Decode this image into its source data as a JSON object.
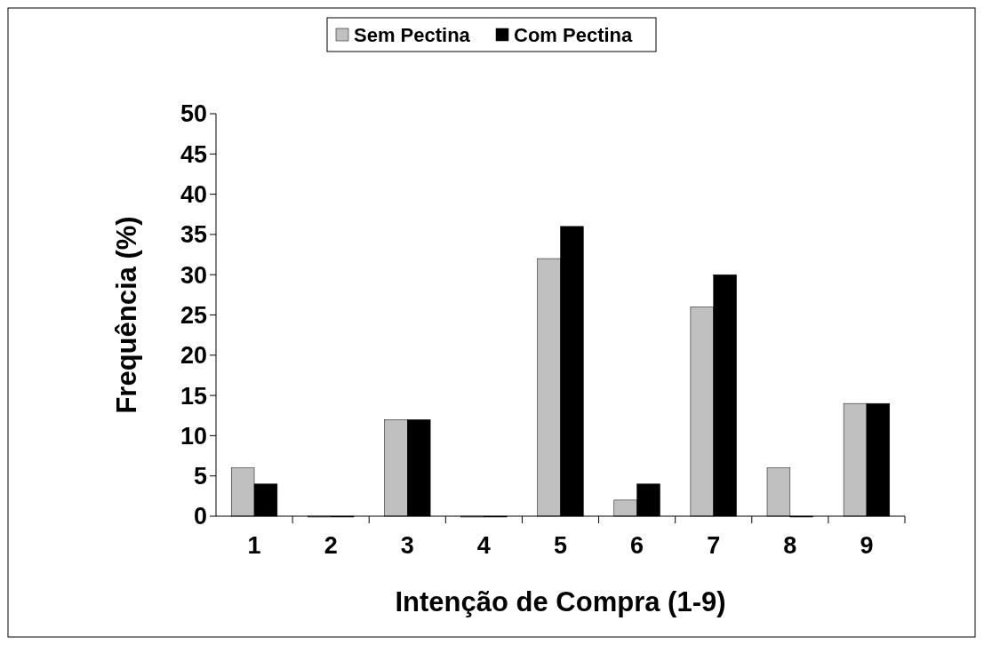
{
  "chart_data": {
    "type": "bar",
    "xlabel": "Intenção de Compra (1-9)",
    "ylabel": "Frequência (%)",
    "categories": [
      "1",
      "2",
      "3",
      "4",
      "5",
      "6",
      "7",
      "8",
      "9"
    ],
    "series": [
      {
        "name": "Sem Pectina",
        "color": "#c0c0c0",
        "values": [
          6,
          0,
          12,
          0,
          32,
          2,
          26,
          6,
          14
        ]
      },
      {
        "name": "Com Pectina",
        "color": "#000000",
        "values": [
          4,
          0,
          12,
          0,
          36,
          4,
          30,
          0,
          14
        ]
      }
    ],
    "ylim": [
      0,
      50
    ],
    "yticks": [
      0,
      5,
      10,
      15,
      20,
      25,
      30,
      35,
      40,
      45,
      50
    ],
    "legend": "top",
    "grid": false
  }
}
